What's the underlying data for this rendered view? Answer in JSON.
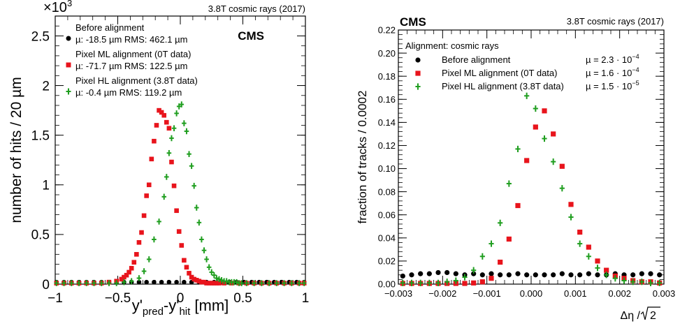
{
  "chart_data": [
    {
      "type": "scatter",
      "experiment_label": "CMS",
      "run_label": "3.8T cosmic rays (2017)",
      "y_multiplier": "×10",
      "y_multiplier_exp": "3",
      "ylabel": "number of hits / 20 µm",
      "xlabel": {
        "base1": "y'",
        "sub1": "pred",
        "mid": "-y'",
        "sub2": "hit",
        "unit": " [mm]"
      },
      "xlim": [
        -1,
        1
      ],
      "ylim": [
        0,
        2.7
      ],
      "xticks": [
        "−1",
        "−0.5",
        "0",
        "0.5",
        "1"
      ],
      "yticks": [
        "0",
        "0.5",
        "1",
        "1.5",
        "2",
        "2.5"
      ],
      "ytick_values": [
        0,
        0.5,
        1,
        1.5,
        2,
        2.5
      ],
      "xtick_values": [
        -1,
        -0.5,
        0,
        0.5,
        1
      ],
      "legend": [
        {
          "label": "Before alignment",
          "stats": "µ: -18.5 µm RMS: 462.1 µm",
          "marker": "circle",
          "color": "#000000"
        },
        {
          "label": "Pixel ML alignment (0T data)",
          "stats": "µ: -71.7 µm RMS: 122.5 µm",
          "marker": "square",
          "color": "#e8141c"
        },
        {
          "label": "Pixel HL alignment (3.8T data)",
          "stats": "µ: -0.4 µm RMS: 119.2 µm",
          "marker": "cross",
          "color": "#1f9e1f"
        }
      ],
      "series": [
        {
          "name": "Before alignment",
          "color": "#000000",
          "marker": "circle",
          "x": [
            -0.99,
            -0.93,
            -0.87,
            -0.81,
            -0.75,
            -0.69,
            -0.63,
            -0.57,
            -0.51,
            -0.45,
            -0.39,
            -0.33,
            -0.27,
            -0.21,
            -0.15,
            -0.09,
            -0.03,
            0.03,
            0.09,
            0.15,
            0.21,
            0.27,
            0.33,
            0.39,
            0.45,
            0.51,
            0.57,
            0.63,
            0.69,
            0.75,
            0.81,
            0.87,
            0.93,
            0.99
          ],
          "y": [
            0.02,
            0.02,
            0.02,
            0.02,
            0.02,
            0.02,
            0.02,
            0.02,
            0.02,
            0.02,
            0.02,
            0.02,
            0.02,
            0.02,
            0.02,
            0.02,
            0.02,
            0.02,
            0.02,
            0.02,
            0.02,
            0.02,
            0.02,
            0.02,
            0.02,
            0.02,
            0.02,
            0.02,
            0.02,
            0.02,
            0.02,
            0.02,
            0.02,
            0.02
          ]
        },
        {
          "name": "Pixel ML alignment (0T data)",
          "color": "#e8141c",
          "marker": "square",
          "x": [
            -0.99,
            -0.93,
            -0.87,
            -0.81,
            -0.75,
            -0.69,
            -0.63,
            -0.57,
            -0.51,
            -0.47,
            -0.45,
            -0.43,
            -0.41,
            -0.39,
            -0.37,
            -0.35,
            -0.33,
            -0.31,
            -0.29,
            -0.27,
            -0.25,
            -0.23,
            -0.21,
            -0.19,
            -0.17,
            -0.15,
            -0.13,
            -0.11,
            -0.09,
            -0.07,
            -0.05,
            -0.03,
            -0.01,
            0.01,
            0.03,
            0.05,
            0.07,
            0.09,
            0.11,
            0.13,
            0.15,
            0.17,
            0.19,
            0.21,
            0.23,
            0.25,
            0.27,
            0.29,
            0.31,
            0.35,
            0.41,
            0.47,
            0.53,
            0.59,
            0.65,
            0.71,
            0.77,
            0.83,
            0.89,
            0.95,
            0.99
          ],
          "y": [
            0.01,
            0.01,
            0.01,
            0.01,
            0.01,
            0.01,
            0.01,
            0.02,
            0.03,
            0.05,
            0.07,
            0.09,
            0.12,
            0.16,
            0.22,
            0.3,
            0.42,
            0.52,
            0.69,
            0.89,
            1.0,
            1.26,
            1.44,
            1.6,
            1.75,
            1.73,
            1.7,
            1.63,
            1.57,
            1.23,
            0.99,
            0.74,
            0.53,
            0.39,
            0.24,
            0.17,
            0.11,
            0.07,
            0.05,
            0.04,
            0.03,
            0.02,
            0.02,
            0.01,
            0.01,
            0.01,
            0.01,
            0.01,
            0.01,
            0.01,
            0.01,
            0.01,
            0.01,
            0.01,
            0.01,
            0.01,
            0.01,
            0.01,
            0.01,
            0.01,
            0.01
          ]
        },
        {
          "name": "Pixel HL alignment (3.8T data)",
          "color": "#1f9e1f",
          "marker": "cross",
          "x": [
            -0.99,
            -0.93,
            -0.87,
            -0.81,
            -0.75,
            -0.69,
            -0.63,
            -0.57,
            -0.51,
            -0.45,
            -0.39,
            -0.33,
            -0.29,
            -0.25,
            -0.21,
            -0.17,
            -0.13,
            -0.11,
            -0.09,
            -0.07,
            -0.05,
            -0.03,
            -0.01,
            0.01,
            0.03,
            0.05,
            0.07,
            0.09,
            0.11,
            0.13,
            0.15,
            0.17,
            0.19,
            0.21,
            0.23,
            0.25,
            0.27,
            0.29,
            0.31,
            0.33,
            0.35,
            0.37,
            0.39,
            0.41,
            0.43,
            0.45,
            0.47,
            0.49,
            0.53,
            0.59,
            0.65,
            0.71,
            0.77,
            0.83,
            0.89,
            0.95,
            0.99
          ],
          "y": [
            0.01,
            0.01,
            0.01,
            0.01,
            0.01,
            0.01,
            0.01,
            0.01,
            0.01,
            0.02,
            0.03,
            0.06,
            0.13,
            0.25,
            0.45,
            0.63,
            0.88,
            1.08,
            1.32,
            1.47,
            1.57,
            1.72,
            1.79,
            1.81,
            1.62,
            1.54,
            1.31,
            1.19,
            0.99,
            0.77,
            0.62,
            0.45,
            0.34,
            0.25,
            0.17,
            0.12,
            0.09,
            0.06,
            0.05,
            0.04,
            0.03,
            0.03,
            0.02,
            0.02,
            0.02,
            0.02,
            0.01,
            0.01,
            0.01,
            0.01,
            0.01,
            0.01,
            0.01,
            0.01,
            0.01,
            0.01,
            0.01
          ]
        }
      ]
    },
    {
      "type": "scatter",
      "experiment_label": "CMS",
      "run_label": "3.8T cosmic rays (2017)",
      "ylabel": "fraction of tracks / 0.0002",
      "xlabel_parts": {
        "delta": "Δη / ",
        "sqrt_arg": "2"
      },
      "xlim": [
        -0.003,
        0.003
      ],
      "ylim": [
        0,
        0.22
      ],
      "xticks": [
        "−0.003",
        "−0.002",
        "−0.001",
        "0.000",
        "0.001",
        "0.002",
        "0.003"
      ],
      "xtick_values": [
        -0.003,
        -0.002,
        -0.001,
        0.0,
        0.001,
        0.002,
        0.003
      ],
      "yticks": [
        "0.00",
        "0.02",
        "0.04",
        "0.06",
        "0.08",
        "0.10",
        "0.12",
        "0.14",
        "0.16",
        "0.18",
        "0.20",
        "0.22"
      ],
      "ytick_values": [
        0,
        0.02,
        0.04,
        0.06,
        0.08,
        0.1,
        0.12,
        0.14,
        0.16,
        0.18,
        0.2,
        0.22
      ],
      "legend_header": "Alignment: cosmic rays",
      "legend": [
        {
          "label": "Before alignment",
          "mu_text": "µ = 2.3 · 10",
          "mu_exp": "−4",
          "marker": "circle",
          "color": "#000000"
        },
        {
          "label": "Pixel ML alignment (0T data)",
          "mu_text": "µ = 1.6 · 10",
          "mu_exp": "−4",
          "marker": "square",
          "color": "#e8141c"
        },
        {
          "label": "Pixel HL alignment (3.8T data)",
          "mu_text": "µ = 1.5 · 10",
          "mu_exp": "−5",
          "marker": "cross",
          "color": "#1f9e1f"
        }
      ],
      "series": [
        {
          "name": "Before alignment",
          "color": "#000000",
          "marker": "circle",
          "x": [
            -0.0029,
            -0.0027,
            -0.0025,
            -0.0023,
            -0.0021,
            -0.0019,
            -0.0017,
            -0.0015,
            -0.0013,
            -0.0011,
            -0.0009,
            -0.0007,
            -0.0005,
            -0.0003,
            -0.0001,
            0.0001,
            0.0003,
            0.0005,
            0.0007,
            0.0009,
            0.0011,
            0.0013,
            0.0015,
            0.0017,
            0.0019,
            0.0021,
            0.0023,
            0.0025,
            0.0027,
            0.0029
          ],
          "y": [
            0.007,
            0.008,
            0.009,
            0.009,
            0.01,
            0.01,
            0.009,
            0.008,
            0.009,
            0.008,
            0.009,
            0.008,
            0.008,
            0.009,
            0.008,
            0.008,
            0.008,
            0.008,
            0.009,
            0.008,
            0.008,
            0.009,
            0.008,
            0.008,
            0.009,
            0.008,
            0.008,
            0.009,
            0.009,
            0.008
          ]
        },
        {
          "name": "Pixel ML alignment (0T data)",
          "color": "#e8141c",
          "marker": "square",
          "x": [
            -0.0029,
            -0.0027,
            -0.0025,
            -0.0023,
            -0.0021,
            -0.0019,
            -0.0017,
            -0.0015,
            -0.0013,
            -0.0011,
            -0.0009,
            -0.0007,
            -0.0005,
            -0.0003,
            -0.0001,
            0.0001,
            0.0003,
            0.0005,
            0.0007,
            0.0009,
            0.0011,
            0.0013,
            0.0015,
            0.0017,
            0.0019,
            0.0021,
            0.0023,
            0.0025,
            0.0027,
            0.0029
          ],
          "y": [
            0.0,
            0.0,
            0.0,
            0.0,
            0.0,
            0.0,
            0.0,
            0.0,
            0.001,
            0.002,
            0.005,
            0.019,
            0.039,
            0.068,
            0.107,
            0.136,
            0.15,
            0.13,
            0.102,
            0.069,
            0.045,
            0.032,
            0.02,
            0.012,
            0.007,
            0.005,
            0.003,
            0.002,
            0.002,
            0.001
          ]
        },
        {
          "name": "Pixel HL alignment (3.8T data)",
          "color": "#1f9e1f",
          "marker": "cross",
          "x": [
            -0.0029,
            -0.0027,
            -0.0025,
            -0.0023,
            -0.0021,
            -0.0019,
            -0.0017,
            -0.0015,
            -0.0013,
            -0.0011,
            -0.0009,
            -0.0007,
            -0.0005,
            -0.0003,
            -0.0001,
            0.0001,
            0.0003,
            0.0005,
            0.0007,
            0.0009,
            0.0011,
            0.0013,
            0.0015,
            0.0017,
            0.0019,
            0.0021,
            0.0023,
            0.0025,
            0.0027,
            0.0029
          ],
          "y": [
            0.001,
            0.001,
            0.001,
            0.001,
            0.001,
            0.002,
            0.003,
            0.006,
            0.012,
            0.024,
            0.035,
            0.053,
            0.087,
            0.117,
            0.163,
            0.152,
            0.126,
            0.106,
            0.083,
            0.058,
            0.035,
            0.024,
            0.014,
            0.008,
            0.005,
            0.003,
            0.002,
            0.002,
            0.001,
            0.001
          ]
        }
      ]
    }
  ]
}
